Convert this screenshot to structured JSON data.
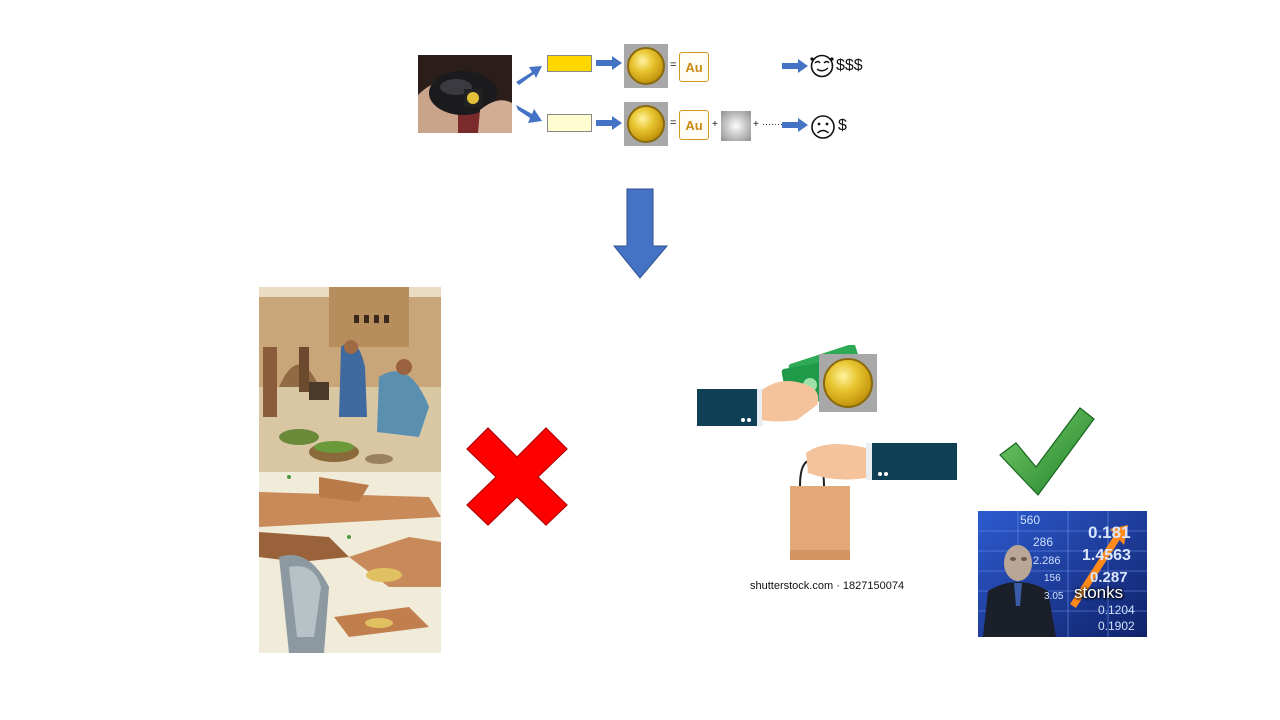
{
  "top_row": {
    "element_symbol": "Au",
    "plus": "+",
    "equals": "=",
    "dots": "·······",
    "money_high": "$$$",
    "money_low": "$"
  },
  "colors": {
    "arrow": "#4472c4",
    "gold_bar_pure": "#ffd700",
    "gold_bar_alloy": "#fffdd0",
    "cross": "#ff0000",
    "check": "#2e9e2e"
  },
  "trade_scene": {
    "caption": "shutterstock.com · 1827150074"
  },
  "stonks": {
    "label": "stonks",
    "numbers": [
      "560",
      "0.181",
      "286",
      "1.4563",
      "2.286",
      "156",
      "0.287",
      "3.05",
      "0.1204",
      "0.1902"
    ]
  },
  "icons": {
    "happy_face": "smirk-face-icon",
    "sad_face": "sad-face-icon",
    "cross": "red-x-icon",
    "check": "green-check-icon"
  }
}
